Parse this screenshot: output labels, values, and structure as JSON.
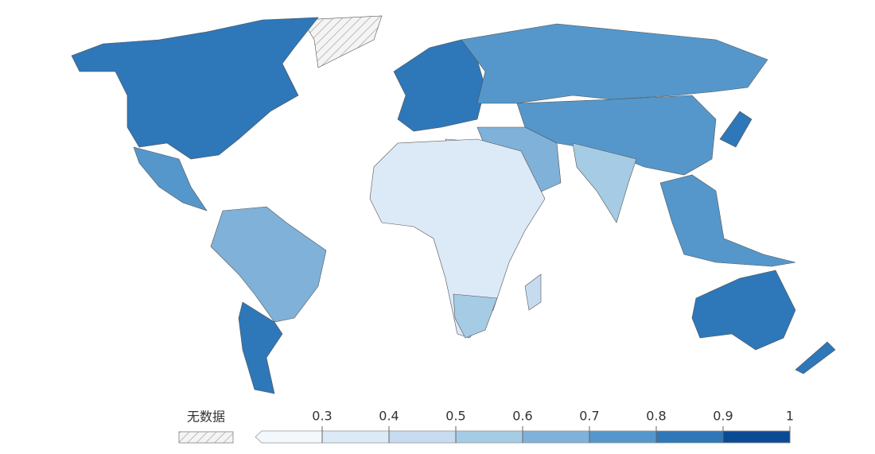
{
  "chart_data": {
    "type": "choropleth",
    "no_data_label": "无数据",
    "xlim": [
      0.3,
      1
    ],
    "xticks": [
      0.3,
      0.4,
      0.5,
      0.6,
      0.7,
      0.8,
      0.9,
      1
    ],
    "colors": [
      "#f3f8fd",
      "#dce9f6",
      "#c6dbef",
      "#a6cbe4",
      "#7fb1d9",
      "#5597ca",
      "#2e77b9",
      "#0b4a95"
    ],
    "values": [
      0.85,
      0.7,
      0.65,
      0.8,
      0.85,
      0.78,
      0.7,
      0.65,
      0.5,
      0.35,
      0.55,
      0.72,
      0.88,
      0.85,
      0.85,
      0.4
    ]
  }
}
